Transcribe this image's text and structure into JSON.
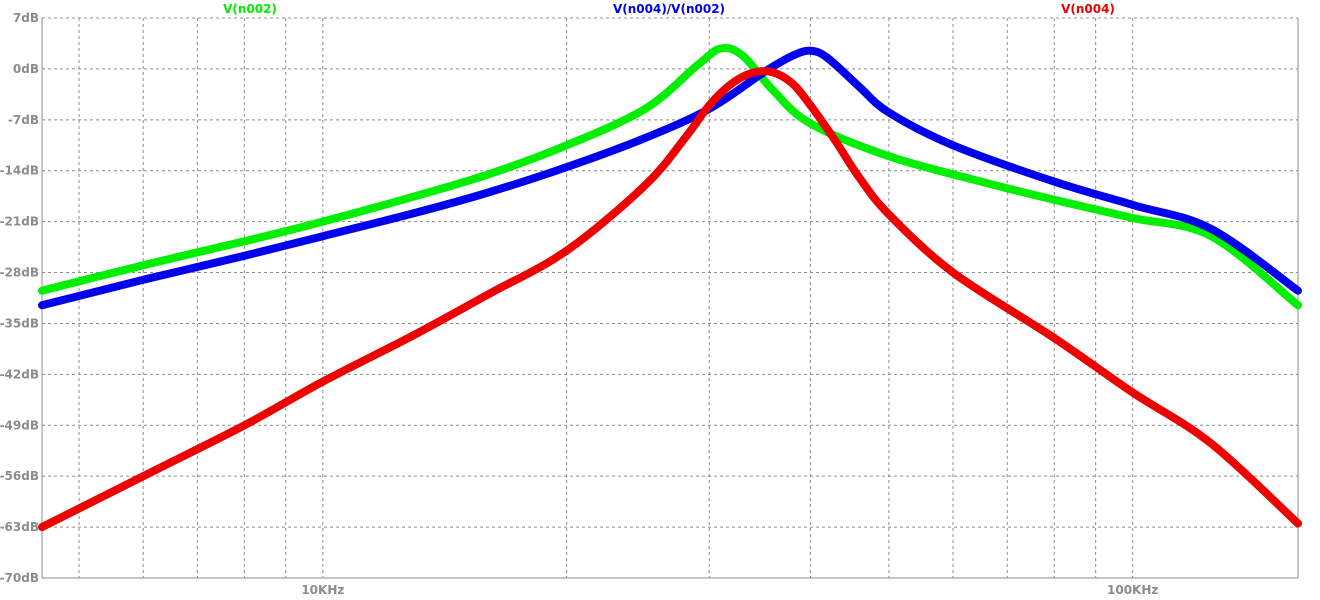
{
  "chart_data": {
    "type": "line",
    "x_scale": "log",
    "x_unit": "Hz",
    "xlim": [
      4500,
      160000
    ],
    "ylim": [
      -70,
      7
    ],
    "y_ticks": [
      7,
      0,
      -7,
      -14,
      -21,
      -28,
      -35,
      -42,
      -49,
      -56,
      -63,
      -70
    ],
    "y_tick_labels": [
      "7dB",
      "0dB",
      "-7dB",
      "-14dB",
      "-21dB",
      "-28dB",
      "-35dB",
      "-42dB",
      "-49dB",
      "-56dB",
      "-63dB",
      "-70dB"
    ],
    "x_tick_labels": [
      {
        "x": 10000,
        "label": "10KHz"
      },
      {
        "x": 100000,
        "label": "100KHz"
      }
    ],
    "grid": true,
    "legend_placement": "top",
    "series": [
      {
        "name": "V(n002)",
        "color": "#00ee00",
        "x": [
          4500,
          6000,
          8000,
          10000,
          13000,
          16000,
          20000,
          25000,
          29000,
          31000,
          33000,
          36000,
          40000,
          50000,
          65000,
          80000,
          100000,
          125000,
          160000
        ],
        "y": [
          -30.5,
          -27.0,
          -23.7,
          -21.0,
          -17.5,
          -14.5,
          -10.5,
          -5.5,
          0.5,
          2.8,
          1.8,
          -3.0,
          -7.5,
          -12.0,
          -15.5,
          -18.0,
          -20.5,
          -23.0,
          -32.5
        ]
      },
      {
        "name": "V(n004)/V(n002)",
        "color": "#0000ee",
        "x": [
          4500,
          6000,
          8000,
          10000,
          13000,
          16000,
          20000,
          25000,
          30000,
          35000,
          38000,
          40000,
          42000,
          46000,
          50000,
          60000,
          80000,
          100000,
          125000,
          160000
        ],
        "y": [
          -32.5,
          -29.0,
          -25.7,
          -23.0,
          -19.8,
          -17.0,
          -13.5,
          -9.5,
          -5.5,
          -0.5,
          1.8,
          2.5,
          1.5,
          -2.5,
          -6.0,
          -10.5,
          -15.5,
          -18.7,
          -22.0,
          -30.5
        ]
      },
      {
        "name": "V(n004)",
        "color": "#ee0000",
        "x": [
          4500,
          6000,
          8000,
          10000,
          13000,
          16000,
          20000,
          25000,
          28000,
          30000,
          32000,
          34000,
          36000,
          38000,
          40000,
          43000,
          46000,
          50000,
          60000,
          80000,
          100000,
          125000,
          160000
        ],
        "y": [
          -63.0,
          -56.0,
          -49.0,
          -43.0,
          -36.5,
          -31.0,
          -25.0,
          -16.0,
          -9.5,
          -5.0,
          -2.0,
          -0.5,
          -0.5,
          -2.0,
          -5.0,
          -10.0,
          -15.0,
          -20.0,
          -28.0,
          -37.0,
          -44.5,
          -51.5,
          -62.5
        ]
      }
    ]
  }
}
